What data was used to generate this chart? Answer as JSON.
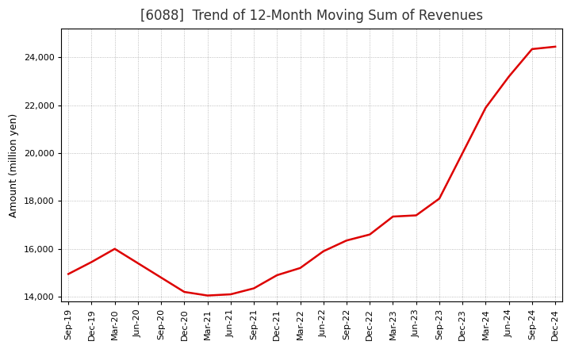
{
  "title": "[6088]  Trend of 12-Month Moving Sum of Revenues",
  "ylabel": "Amount (million yen)",
  "line_color": "#dd0000",
  "background_color": "#ffffff",
  "plot_bg_color": "#ffffff",
  "grid_color": "#aaaaaa",
  "x_labels": [
    "Sep-19",
    "Dec-19",
    "Mar-20",
    "Jun-20",
    "Sep-20",
    "Dec-20",
    "Mar-21",
    "Jun-21",
    "Sep-21",
    "Dec-21",
    "Mar-22",
    "Jun-22",
    "Sep-22",
    "Dec-22",
    "Mar-23",
    "Jun-23",
    "Sep-23",
    "Dec-23",
    "Mar-24",
    "Jun-24",
    "Sep-24",
    "Dec-24"
  ],
  "y_values": [
    14950,
    15450,
    16000,
    15400,
    14800,
    14200,
    14050,
    14100,
    14350,
    14900,
    15200,
    15900,
    16350,
    16600,
    17350,
    17400,
    18100,
    20000,
    21900,
    23200,
    24350,
    24450
  ],
  "ylim": [
    13800,
    25200
  ],
  "yticks": [
    14000,
    16000,
    18000,
    20000,
    22000,
    24000
  ],
  "title_fontsize": 12,
  "label_fontsize": 9,
  "tick_fontsize": 8,
  "linewidth": 1.8
}
